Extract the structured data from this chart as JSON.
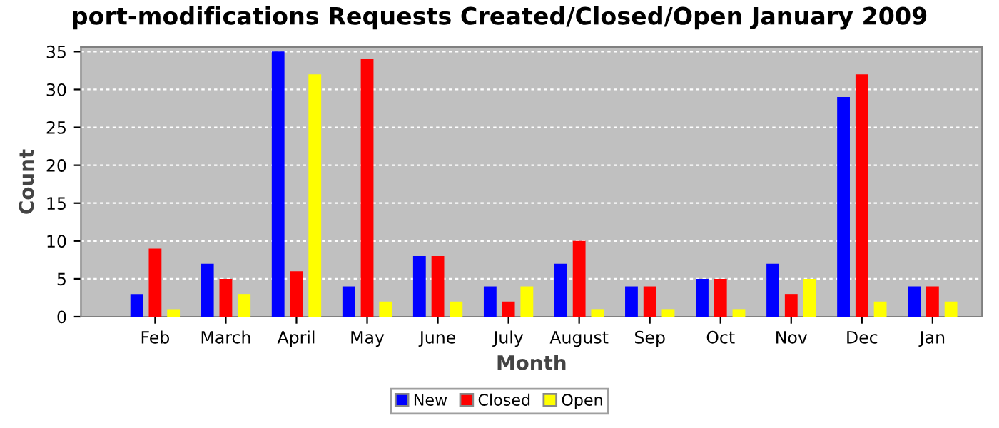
{
  "chart_data": {
    "type": "bar",
    "title": "port-modifications Requests Created/Closed/Open January 2009",
    "xlabel": "Month",
    "ylabel": "Count",
    "categories": [
      "Feb",
      "March",
      "April",
      "May",
      "June",
      "July",
      "August",
      "Sep",
      "Oct",
      "Nov",
      "Dec",
      "Jan"
    ],
    "series": [
      {
        "name": "New",
        "color": "#0000ff",
        "values": [
          3,
          7,
          35,
          4,
          8,
          4,
          7,
          4,
          5,
          7,
          29,
          4
        ]
      },
      {
        "name": "Closed",
        "color": "#ff0000",
        "values": [
          9,
          5,
          6,
          34,
          8,
          2,
          10,
          4,
          5,
          3,
          32,
          4
        ]
      },
      {
        "name": "Open",
        "color": "#ffff00",
        "values": [
          1,
          3,
          32,
          2,
          2,
          4,
          1,
          1,
          1,
          5,
          2,
          2
        ]
      }
    ],
    "ylim": [
      0,
      35.6
    ],
    "yticks": [
      0,
      5,
      10,
      15,
      20,
      25,
      30,
      35
    ],
    "grid": "y",
    "legend": "bottom"
  }
}
